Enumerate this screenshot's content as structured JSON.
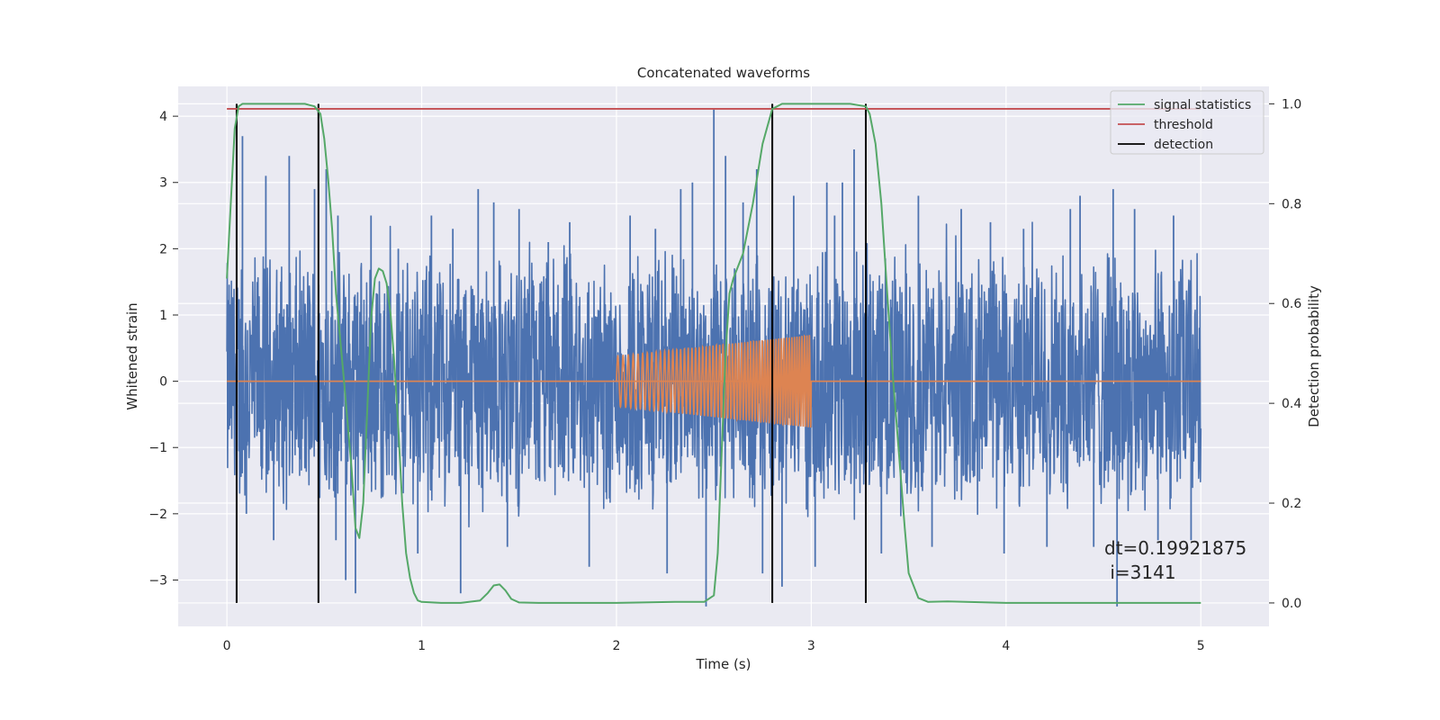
{
  "chart_data": {
    "type": "line",
    "title": "Concatenated waveforms",
    "xlabel": "Time (s)",
    "ylabel_left": "Whitened strain",
    "ylabel_right": "Detection probability",
    "xlim": [
      -0.25,
      5.35
    ],
    "ylim_left": [
      -3.7,
      4.45
    ],
    "ylim_right": [
      -0.047,
      1.035
    ],
    "x_ticks": [
      0,
      1,
      2,
      3,
      4,
      5
    ],
    "x_tick_labels": [
      "0",
      "1",
      "2",
      "3",
      "4",
      "5"
    ],
    "y_left_ticks": [
      -3,
      -2,
      -1,
      0,
      1,
      2,
      3,
      4
    ],
    "y_left_tick_labels": [
      "−3",
      "−2",
      "−1",
      "0",
      "1",
      "2",
      "3",
      "4"
    ],
    "y_right_ticks": [
      0.0,
      0.2,
      0.4,
      0.6,
      0.8,
      1.0
    ],
    "y_right_tick_labels": [
      "0.0",
      "0.2",
      "0.4",
      "0.6",
      "0.8",
      "1.0"
    ],
    "grid": true,
    "legend_position": "upper right",
    "series": [
      {
        "type": "noise",
        "axis": "left",
        "color": "#4c72b0",
        "x_range": [
          0,
          5
        ],
        "envelope": 2.1,
        "spikes": [
          {
            "x": 0.08,
            "y": 3.7
          },
          {
            "x": 0.1,
            "y": -2.0
          },
          {
            "x": 0.2,
            "y": 3.1
          },
          {
            "x": 0.24,
            "y": -2.4
          },
          {
            "x": 0.32,
            "y": 3.4
          },
          {
            "x": 0.45,
            "y": 2.9
          },
          {
            "x": 0.51,
            "y": 3.2
          },
          {
            "x": 0.56,
            "y": -2.4
          },
          {
            "x": 0.57,
            "y": 2.5
          },
          {
            "x": 0.61,
            "y": -3.0
          },
          {
            "x": 0.66,
            "y": -3.2
          },
          {
            "x": 0.74,
            "y": 2.5
          },
          {
            "x": 0.88,
            "y": 2.0
          },
          {
            "x": 0.98,
            "y": -2.6
          },
          {
            "x": 1.05,
            "y": 2.5
          },
          {
            "x": 1.16,
            "y": 2.3
          },
          {
            "x": 1.2,
            "y": -3.2
          },
          {
            "x": 1.29,
            "y": 2.9
          },
          {
            "x": 1.37,
            "y": 2.7
          },
          {
            "x": 1.44,
            "y": -2.5
          },
          {
            "x": 1.5,
            "y": 2.6
          },
          {
            "x": 1.65,
            "y": 2.1
          },
          {
            "x": 1.76,
            "y": 2.4
          },
          {
            "x": 1.86,
            "y": -2.8
          },
          {
            "x": 2.07,
            "y": 2.5
          },
          {
            "x": 2.2,
            "y": 2.3
          },
          {
            "x": 2.26,
            "y": -2.9
          },
          {
            "x": 2.33,
            "y": 2.9
          },
          {
            "x": 2.39,
            "y": 3.0
          },
          {
            "x": 2.46,
            "y": -3.4
          },
          {
            "x": 2.5,
            "y": 4.1
          },
          {
            "x": 2.56,
            "y": 3.4
          },
          {
            "x": 2.65,
            "y": 2.7
          },
          {
            "x": 2.72,
            "y": 3.2
          },
          {
            "x": 2.75,
            "y": -2.9
          },
          {
            "x": 2.85,
            "y": -3.1
          },
          {
            "x": 2.91,
            "y": 2.8
          },
          {
            "x": 3.02,
            "y": -2.8
          },
          {
            "x": 3.08,
            "y": 3.0
          },
          {
            "x": 3.12,
            "y": 2.5
          },
          {
            "x": 3.16,
            "y": 3.0
          },
          {
            "x": 3.22,
            "y": 3.5
          },
          {
            "x": 3.36,
            "y": -2.6
          },
          {
            "x": 3.55,
            "y": 2.8
          },
          {
            "x": 3.62,
            "y": -2.5
          },
          {
            "x": 3.77,
            "y": 2.6
          },
          {
            "x": 3.92,
            "y": 2.4
          },
          {
            "x": 3.99,
            "y": -2.6
          },
          {
            "x": 4.09,
            "y": 2.3
          },
          {
            "x": 4.21,
            "y": -2.5
          },
          {
            "x": 4.33,
            "y": 2.6
          },
          {
            "x": 4.38,
            "y": 2.8
          },
          {
            "x": 4.45,
            "y": -2.5
          },
          {
            "x": 4.55,
            "y": 2.9
          },
          {
            "x": 4.57,
            "y": -3.4
          },
          {
            "x": 4.66,
            "y": 2.6
          },
          {
            "x": 4.78,
            "y": -2.4
          },
          {
            "x": 4.86,
            "y": 2.5
          },
          {
            "x": 4.95,
            "y": -2.4
          }
        ]
      },
      {
        "type": "chirp",
        "axis": "left",
        "color": "#dd8452",
        "x_range": [
          2.0,
          3.0
        ],
        "amp_start": 0.38,
        "amp_end": 0.7,
        "freq_start": 36,
        "freq_end": 80,
        "baseline_range": [
          0,
          5
        ],
        "baseline_value": 0
      },
      {
        "name": "signal statistics",
        "axis": "right",
        "color": "#55a868",
        "x": [
          0.0,
          0.02,
          0.04,
          0.06,
          0.08,
          0.1,
          0.2,
          0.3,
          0.4,
          0.45,
          0.48,
          0.5,
          0.52,
          0.54,
          0.56,
          0.6,
          0.64,
          0.66,
          0.68,
          0.7,
          0.72,
          0.74,
          0.76,
          0.78,
          0.8,
          0.82,
          0.84,
          0.86,
          0.88,
          0.9,
          0.92,
          0.94,
          0.96,
          0.98,
          1.0,
          1.1,
          1.2,
          1.3,
          1.34,
          1.37,
          1.4,
          1.43,
          1.46,
          1.5,
          1.6,
          2.0,
          2.3,
          2.45,
          2.5,
          2.52,
          2.54,
          2.56,
          2.58,
          2.6,
          2.65,
          2.7,
          2.75,
          2.8,
          2.85,
          2.9,
          3.0,
          3.1,
          3.2,
          3.28,
          3.3,
          3.33,
          3.36,
          3.39,
          3.42,
          3.45,
          3.48,
          3.5,
          3.55,
          3.6,
          3.7,
          4.0,
          4.5,
          5.0
        ],
        "y": [
          0.65,
          0.8,
          0.95,
          0.995,
          1.0,
          1.0,
          1.0,
          1.0,
          1.0,
          0.995,
          0.98,
          0.93,
          0.85,
          0.75,
          0.62,
          0.45,
          0.27,
          0.15,
          0.13,
          0.2,
          0.38,
          0.57,
          0.65,
          0.67,
          0.665,
          0.64,
          0.58,
          0.48,
          0.35,
          0.2,
          0.1,
          0.05,
          0.02,
          0.005,
          0.002,
          0.0,
          0.0,
          0.005,
          0.02,
          0.035,
          0.037,
          0.025,
          0.008,
          0.001,
          0.0,
          0.0,
          0.002,
          0.002,
          0.015,
          0.1,
          0.3,
          0.5,
          0.62,
          0.65,
          0.7,
          0.8,
          0.92,
          0.99,
          1.0,
          1.0,
          1.0,
          1.0,
          1.0,
          0.995,
          0.98,
          0.92,
          0.8,
          0.62,
          0.45,
          0.3,
          0.15,
          0.06,
          0.01,
          0.002,
          0.003,
          0.0,
          0.0,
          0.0
        ]
      },
      {
        "name": "threshold",
        "axis": "right",
        "color": "#c44e52",
        "x": [
          0,
          5
        ],
        "y": [
          0.99,
          0.99
        ]
      }
    ],
    "detections": {
      "name": "detection",
      "color": "#000000",
      "x": [
        0.05,
        0.47,
        2.8,
        3.28
      ],
      "y_range": [
        0,
        1.0
      ]
    },
    "annotation": {
      "lines": [
        "dt=0.19921875",
        " i=3141"
      ]
    }
  }
}
